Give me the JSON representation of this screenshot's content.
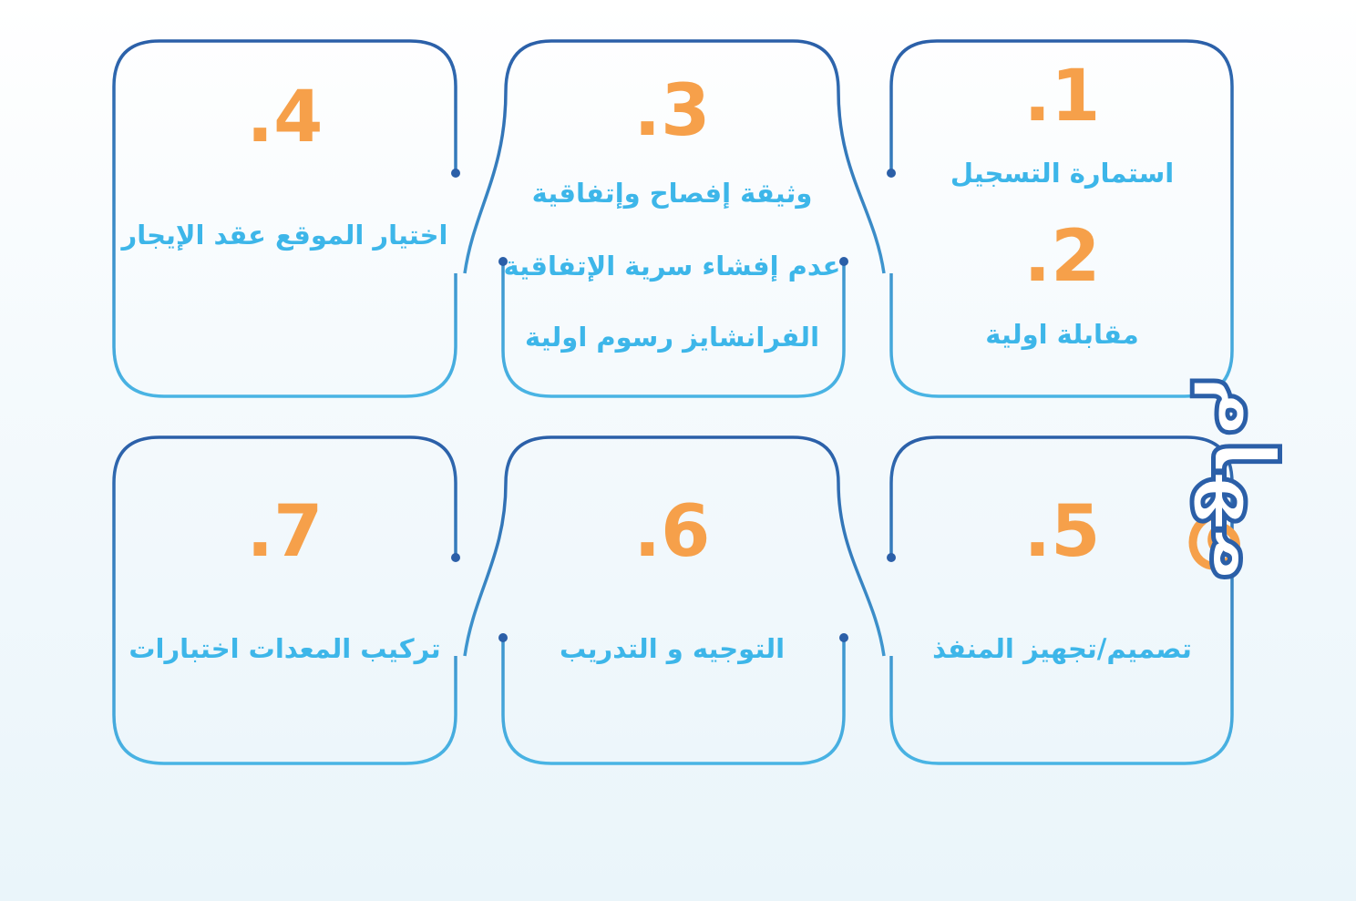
{
  "side_title": "مهام",
  "colors": {
    "number": "#f6a04a",
    "text": "#3db6e9",
    "border_top": "#2b5fa8",
    "border_bottom": "#49b4e4"
  },
  "steps": [
    {
      "number": ".1",
      "lines": [
        "استمارة التسجيل"
      ]
    },
    {
      "number": ".2",
      "lines": [
        "مقابلة اولية"
      ]
    },
    {
      "number": ".3",
      "lines": [
        "وثيقة إفصاح وإتفاقية",
        "عدم إفشاء سرية الإتفاقية",
        "الفرانشايز رسوم اولية"
      ]
    },
    {
      "number": ".4",
      "lines": [
        "اختيار الموقع عقد الإيجار"
      ]
    },
    {
      "number": ".5",
      "lines": [
        "تصميم/تجهيز المنفذ"
      ]
    },
    {
      "number": ".6",
      "lines": [
        "التوجيه و التدريب"
      ]
    },
    {
      "number": ".7",
      "lines": [
        "تركيب المعدات اختبارات"
      ]
    }
  ]
}
